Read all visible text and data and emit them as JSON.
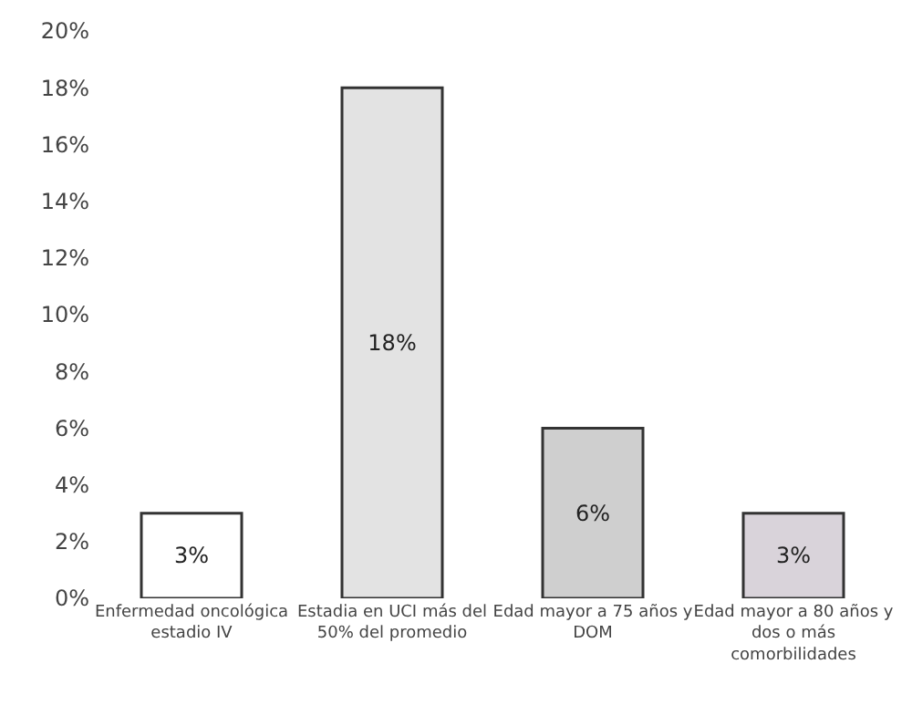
{
  "chart_data": {
    "type": "bar",
    "categories": [
      "Enfermedad oncológica estadio IV",
      "Estadia en UCI más del 50% del promedio",
      "Edad mayor a 75 años y DOM",
      "Edad mayor a 80 años y dos o más comorbilidades"
    ],
    "values": [
      3,
      18,
      6,
      3
    ],
    "colors": [
      "#ffffff",
      "#e3e3e3",
      "#cfcfcf",
      "#d9d3da"
    ],
    "value_labels": [
      "3%",
      "18%",
      "6%",
      "3%"
    ],
    "ylim": [
      0,
      20
    ],
    "yticks": [
      {
        "value": 0,
        "label": "0%"
      },
      {
        "value": 2,
        "label": "2%"
      },
      {
        "value": 4,
        "label": "4%"
      },
      {
        "value": 6,
        "label": "6%"
      },
      {
        "value": 8,
        "label": "8%"
      },
      {
        "value": 10,
        "label": "10%"
      },
      {
        "value": 12,
        "label": "12%"
      },
      {
        "value": 14,
        "label": "14%"
      },
      {
        "value": 16,
        "label": "16%"
      },
      {
        "value": 18,
        "label": "18%"
      },
      {
        "value": 20,
        "label": "20%"
      }
    ]
  }
}
